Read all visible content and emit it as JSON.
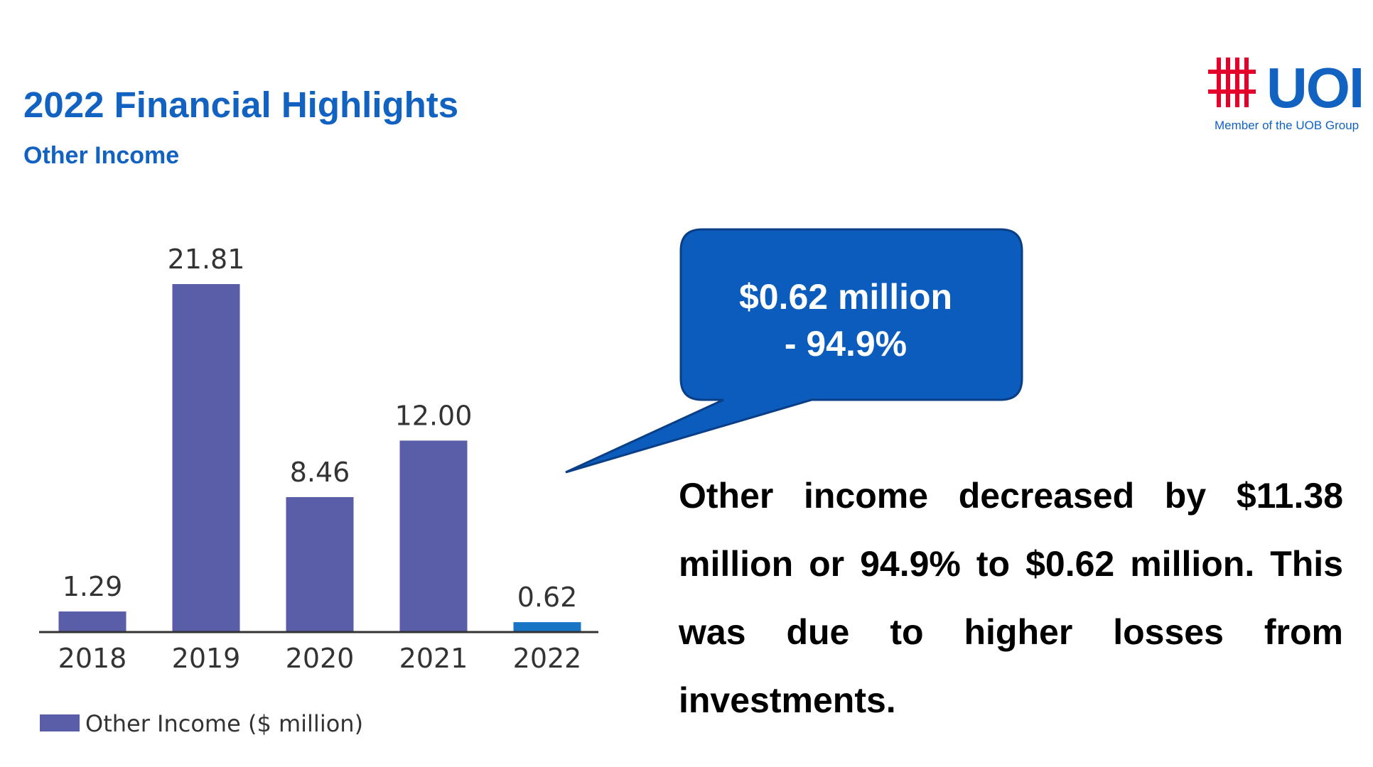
{
  "header": {
    "title": "2022 Financial Highlights",
    "subtitle": "Other Income"
  },
  "logo": {
    "text": "UOI",
    "tagline": "Member of the UOB Group",
    "icon": "uoi-hash-logo-icon",
    "red": "#e4002b",
    "blue": "#1162c1"
  },
  "callout": {
    "line1": "$0.62 million",
    "line2": "- 94.9%",
    "fill": "#0b5cbd"
  },
  "body": {
    "text": "Other income decreased by $11.38 million or 94.9% to $0.62 million. This was due to higher losses from investments."
  },
  "chart_data": {
    "type": "bar",
    "categories": [
      "2018",
      "2019",
      "2020",
      "2021",
      "2022"
    ],
    "series": [
      {
        "name": "Other Income ($ million)",
        "values": [
          1.29,
          21.81,
          8.46,
          12.0,
          0.62
        ]
      }
    ],
    "value_labels": [
      "1.29",
      "21.81",
      "8.46",
      "12.00",
      "0.62"
    ],
    "ylim": [
      0,
      21.81
    ],
    "grid": false,
    "legend": "bottom-left",
    "colors": {
      "bar": "#5a5ea8",
      "highlight": "#1874c4",
      "axis": "#333333"
    }
  }
}
